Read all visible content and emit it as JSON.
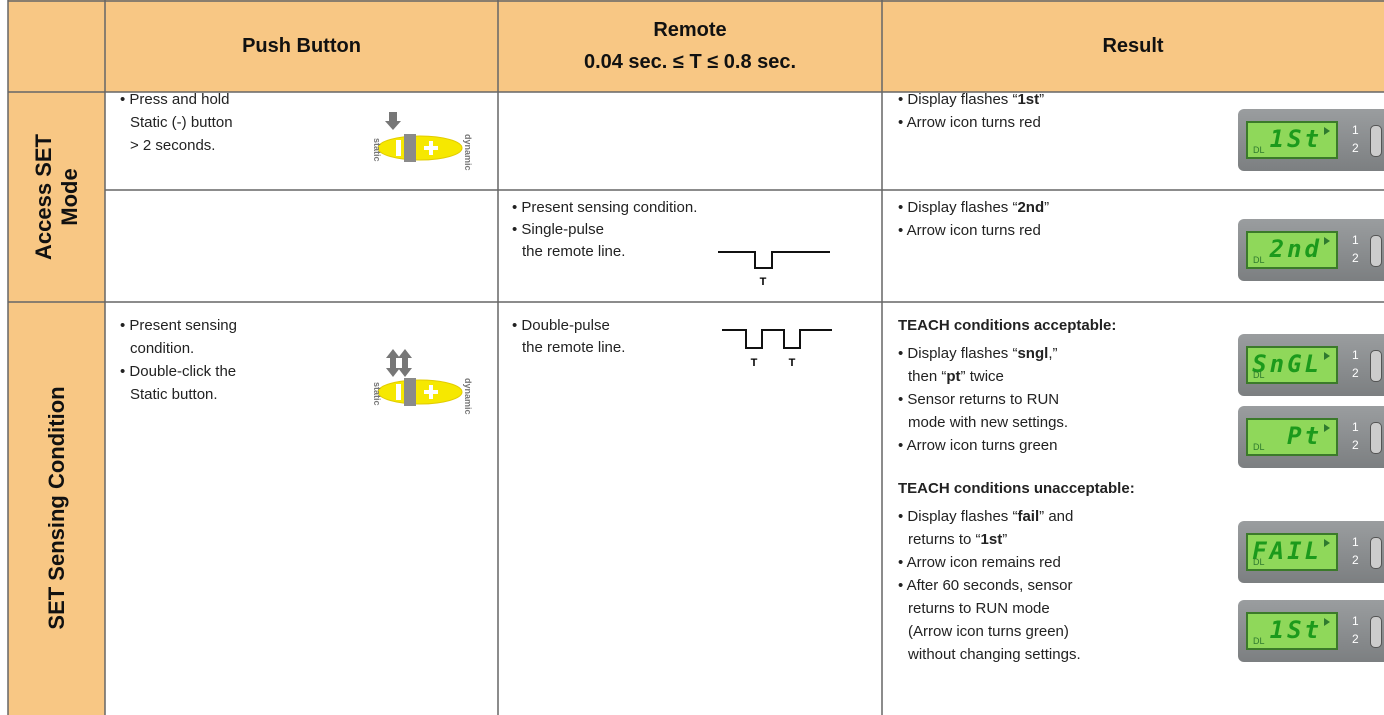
{
  "header": {
    "push_button": "Push Button",
    "remote": [
      "Remote",
      "0.04 sec. ≤ T ≤ 0.8 sec."
    ],
    "result": "Result"
  },
  "icons": {
    "button_left": "static",
    "button_right": "dynamic",
    "pulse_label": "T"
  },
  "display_labels": {
    "mode": "DL",
    "output_1": "1",
    "output_2": "2"
  },
  "sections": [
    {
      "label": [
        "Access SET",
        "Mode"
      ],
      "rows": [
        {
          "push_button": [
            [
              [
                "Press and hold"
              ],
              [
                "Static (-) button"
              ],
              [
                "> 2 seconds."
              ]
            ]
          ],
          "result": {
            "groups": [
              {
                "items": [
                  [
                    [
                      "Display flashes “",
                      {
                        "bold": "1st"
                      },
                      "”"
                    ]
                  ],
                  [
                    [
                      "Arrow icon turns red"
                    ]
                  ]
                ]
              }
            ],
            "displays": [
              "1St"
            ]
          }
        },
        {
          "remote": [
            [
              [
                "Present sensing condition."
              ]
            ],
            [
              [
                "Single-pulse"
              ],
              [
                "the remote line."
              ]
            ]
          ],
          "result": {
            "groups": [
              {
                "items": [
                  [
                    [
                      "Display flashes “",
                      {
                        "bold": "2nd"
                      },
                      "”"
                    ]
                  ],
                  [
                    [
                      "Arrow icon turns red"
                    ]
                  ]
                ]
              }
            ],
            "displays": [
              "2nd"
            ]
          }
        }
      ]
    },
    {
      "label": [
        "SET Sensing Condition"
      ],
      "rows": [
        {
          "push_button": [
            [
              [
                "Present sensing"
              ],
              [
                "condition."
              ]
            ],
            [
              [
                "Double-click the"
              ],
              [
                "Static button."
              ]
            ]
          ],
          "remote": [
            [
              [
                "Double-pulse"
              ],
              [
                "the remote line."
              ]
            ]
          ],
          "result": {
            "groups": [
              {
                "heading": "TEACH conditions acceptable:",
                "items": [
                  [
                    [
                      "Display flashes “",
                      {
                        "bold": "sngl"
                      },
                      ",”"
                    ],
                    [
                      "then “",
                      {
                        "bold": "pt"
                      },
                      "” twice"
                    ]
                  ],
                  [
                    [
                      "Sensor returns to RUN"
                    ],
                    [
                      "mode with new settings."
                    ]
                  ],
                  [
                    [
                      "Arrow icon turns green"
                    ]
                  ]
                ]
              },
              {
                "heading": "TEACH conditions unacceptable:",
                "items": [
                  [
                    [
                      "Display flashes “",
                      {
                        "bold": "fail"
                      },
                      "” and"
                    ],
                    [
                      "returns to “",
                      {
                        "bold": "1st"
                      },
                      "”"
                    ]
                  ],
                  [
                    [
                      "Arrow icon remains red"
                    ]
                  ],
                  [
                    [
                      "After 60 seconds, sensor"
                    ],
                    [
                      "returns to RUN mode"
                    ],
                    [
                      "(Arrow icon turns green)"
                    ],
                    [
                      "without changing settings."
                    ]
                  ]
                ]
              }
            ],
            "displays": [
              "SnGL",
              "Pt",
              "FAIL",
              "1St"
            ]
          }
        }
      ]
    }
  ]
}
